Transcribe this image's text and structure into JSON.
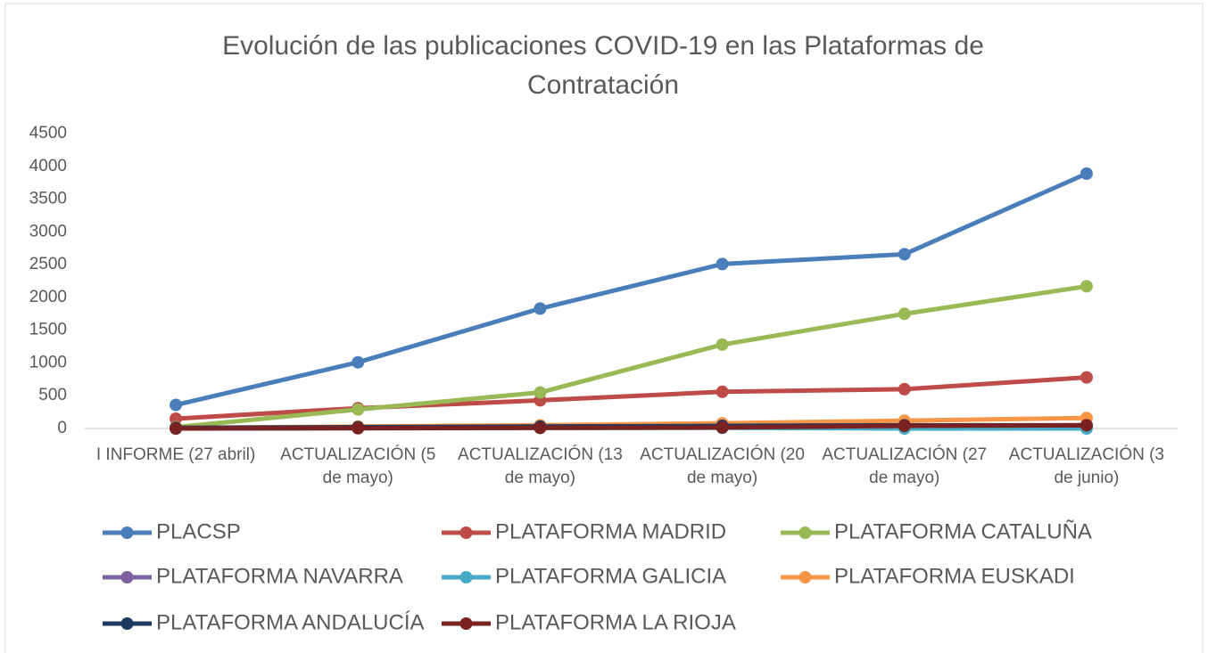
{
  "chart_data": {
    "type": "line",
    "title": "Evolución de las publicaciones COVID-19 en las Plataformas de Contratación",
    "categories": [
      "I INFORME (27 abril)",
      "ACTUALIZACIÓN (5 de mayo)",
      "ACTUALIZACIÓN (13 de mayo)",
      "ACTUALIZACIÓN (20 de mayo)",
      "ACTUALIZACIÓN (27 de mayo)",
      "ACTUALIZACIÓN (3 de junio)"
    ],
    "series": [
      {
        "name": "PLACSP",
        "color": "#4a7ebb",
        "values": [
          360,
          1010,
          1830,
          2510,
          2660,
          3890
        ]
      },
      {
        "name": "PLATAFORMA MADRID",
        "color": "#be4b48",
        "values": [
          150,
          310,
          430,
          560,
          600,
          780
        ]
      },
      {
        "name": "PLATAFORMA CATALUÑA",
        "color": "#98b954",
        "values": [
          20,
          290,
          550,
          1280,
          1750,
          2170
        ]
      },
      {
        "name": "PLATAFORMA NAVARRA",
        "color": "#7d60a0",
        "values": [
          0,
          5,
          10,
          15,
          20,
          25
        ]
      },
      {
        "name": "PLATAFORMA GALICIA",
        "color": "#46aac4",
        "values": [
          0,
          5,
          10,
          10,
          0,
          0
        ]
      },
      {
        "name": "PLATAFORMA EUSKADI",
        "color": "#f79646",
        "values": [
          10,
          30,
          50,
          80,
          120,
          160
        ]
      },
      {
        "name": "PLATAFORMA ANDALUCÍA",
        "color": "#1f3a60",
        "values": [
          10,
          20,
          30,
          40,
          50,
          50
        ]
      },
      {
        "name": "PLATAFORMA LA RIOJA",
        "color": "#7a2222",
        "values": [
          0,
          5,
          10,
          15,
          40,
          50
        ]
      }
    ],
    "ylim": [
      0,
      4500
    ],
    "yticks": [
      0,
      500,
      1000,
      1500,
      2000,
      2500,
      3000,
      3500,
      4000,
      4500
    ],
    "grid": false,
    "legend": "bottom"
  }
}
